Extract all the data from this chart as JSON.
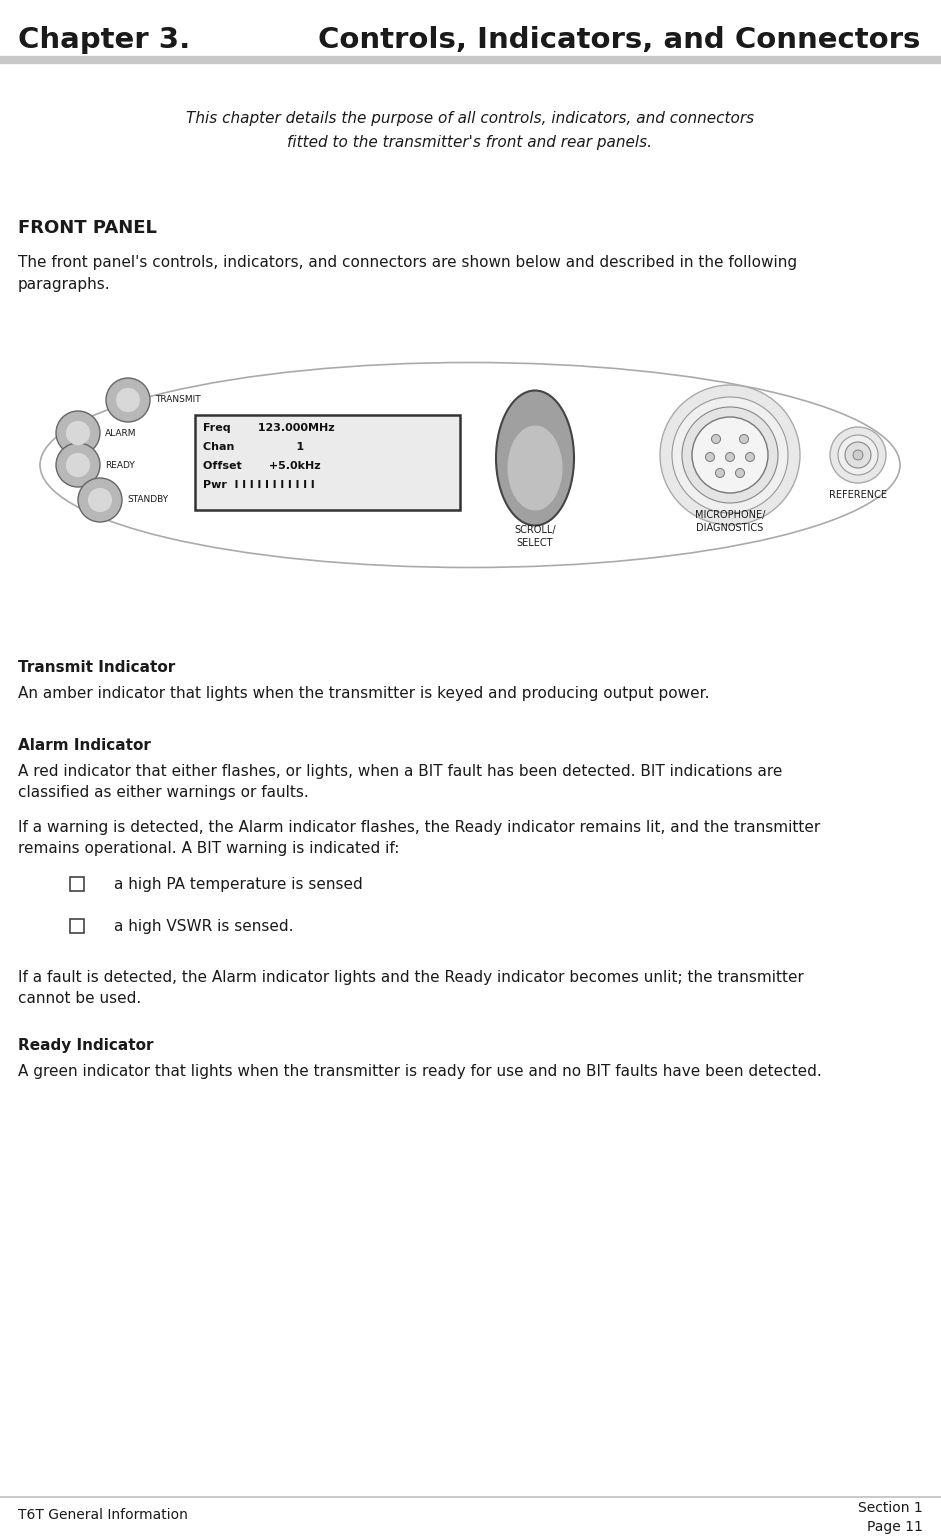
{
  "title_left": "Chapter 3.",
  "title_right": "Controls, Indicators, and Connectors",
  "header_line_color": "#c0c0c0",
  "subtitle_line1": "This chapter details the purpose of all controls, indicators, and connectors",
  "subtitle_line2": "fitted to the transmitter's front and rear panels.",
  "section_title": "FRONT PANEL",
  "section_intro_line1": "The front panel's controls, indicators, and connectors are shown below and described in the following",
  "section_intro_line2": "paragraphs.",
  "display_lines": [
    "Freq       123.000MHz",
    "Chan                1",
    "Offset       +5.0kHz",
    "Pwr  l l l l l l l l l l l"
  ],
  "indicator_labels": [
    "TRANSMIT",
    "ALARM",
    "READY",
    "STANDBY"
  ],
  "scroll_label": "SCROLL/\nSELECT",
  "mic_label": "MICROPHONE/\nDIAGNOSTICS",
  "ref_label": "REFERENCE",
  "body_sections": [
    {
      "heading": "Transmit Indicator",
      "text": "An amber indicator that lights when the transmitter is keyed and producing output power."
    },
    {
      "heading": "Alarm Indicator",
      "text": "A red indicator that either flashes, or lights, when a BIT fault has been detected. BIT indications are\nclassified as either warnings or faults."
    },
    {
      "heading": null,
      "text": "If a warning is detected, the Alarm indicator flashes, the Ready indicator remains lit, and the transmitter\nremains operational. A BIT warning is indicated if:"
    },
    {
      "heading": null,
      "text": null,
      "bullets": [
        "a high PA temperature is sensed",
        "a high VSWR is sensed."
      ]
    },
    {
      "heading": null,
      "text": "If a fault is detected, the Alarm indicator lights and the Ready indicator becomes unlit; the transmitter\ncannot be used."
    },
    {
      "heading": "Ready Indicator",
      "text": "A green indicator that lights when the transmitter is ready for use and no BIT faults have been detected."
    }
  ],
  "footer_left": "T6T General Information",
  "footer_right_line1": "Section 1",
  "footer_right_line2": "Page 11",
  "bg_color": "#ffffff",
  "text_color": "#1a1a1a"
}
